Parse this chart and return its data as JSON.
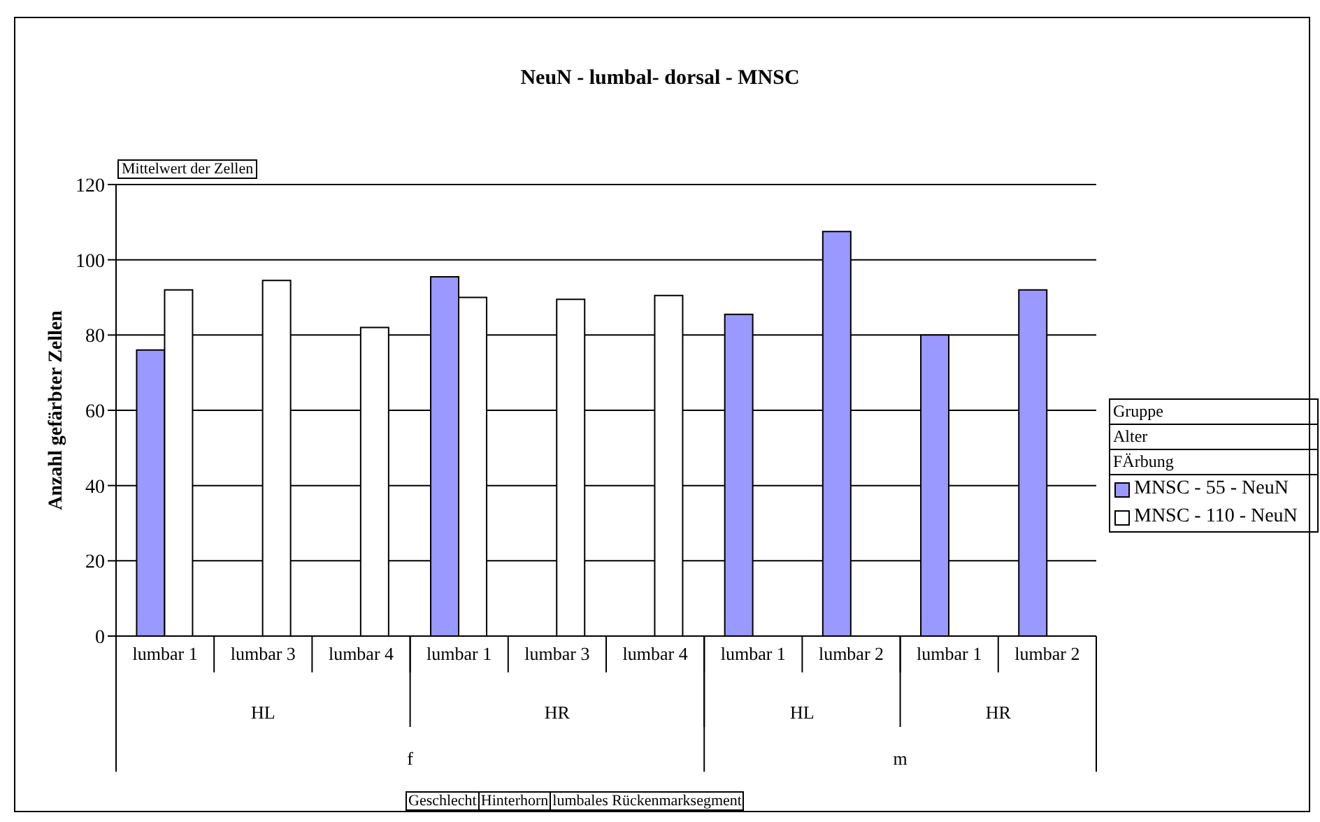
{
  "chart_data": {
    "type": "bar",
    "title": "NeuN - lumbal- dorsal - MNSC",
    "ylabel": "Anzahl gefärbter Zellen",
    "categories": [
      "lumbar 1",
      "lumbar 3",
      "lumbar 4",
      "lumbar 1",
      "lumbar 3",
      "lumbar 4",
      "lumbar 1",
      "lumbar 2",
      "lumbar 1",
      "lumbar 2"
    ],
    "series": [
      {
        "name": "MNSC - 55 - NeuN",
        "color": "#9999ff",
        "values": [
          76,
          null,
          null,
          95.5,
          null,
          null,
          85.5,
          107.5,
          80,
          92
        ]
      },
      {
        "name": "MNSC - 110 - NeuN",
        "color": "#ffffff",
        "values": [
          92,
          94.5,
          82,
          90,
          89.5,
          90.5,
          null,
          null,
          null,
          null
        ]
      }
    ],
    "ylim": [
      0,
      120
    ],
    "yticks": [
      0,
      20,
      40,
      60,
      80,
      100,
      120
    ],
    "grid": "y",
    "legend": "right",
    "annotations": [
      "Mittelwert der Zellen",
      "HL",
      "HR",
      "HL",
      "HR",
      "f",
      "m",
      "Geschlecht",
      "Hinterhorn",
      "lumbales Rückenmarksegment",
      "Gruppe",
      "Alter",
      "FÄrbung"
    ]
  }
}
